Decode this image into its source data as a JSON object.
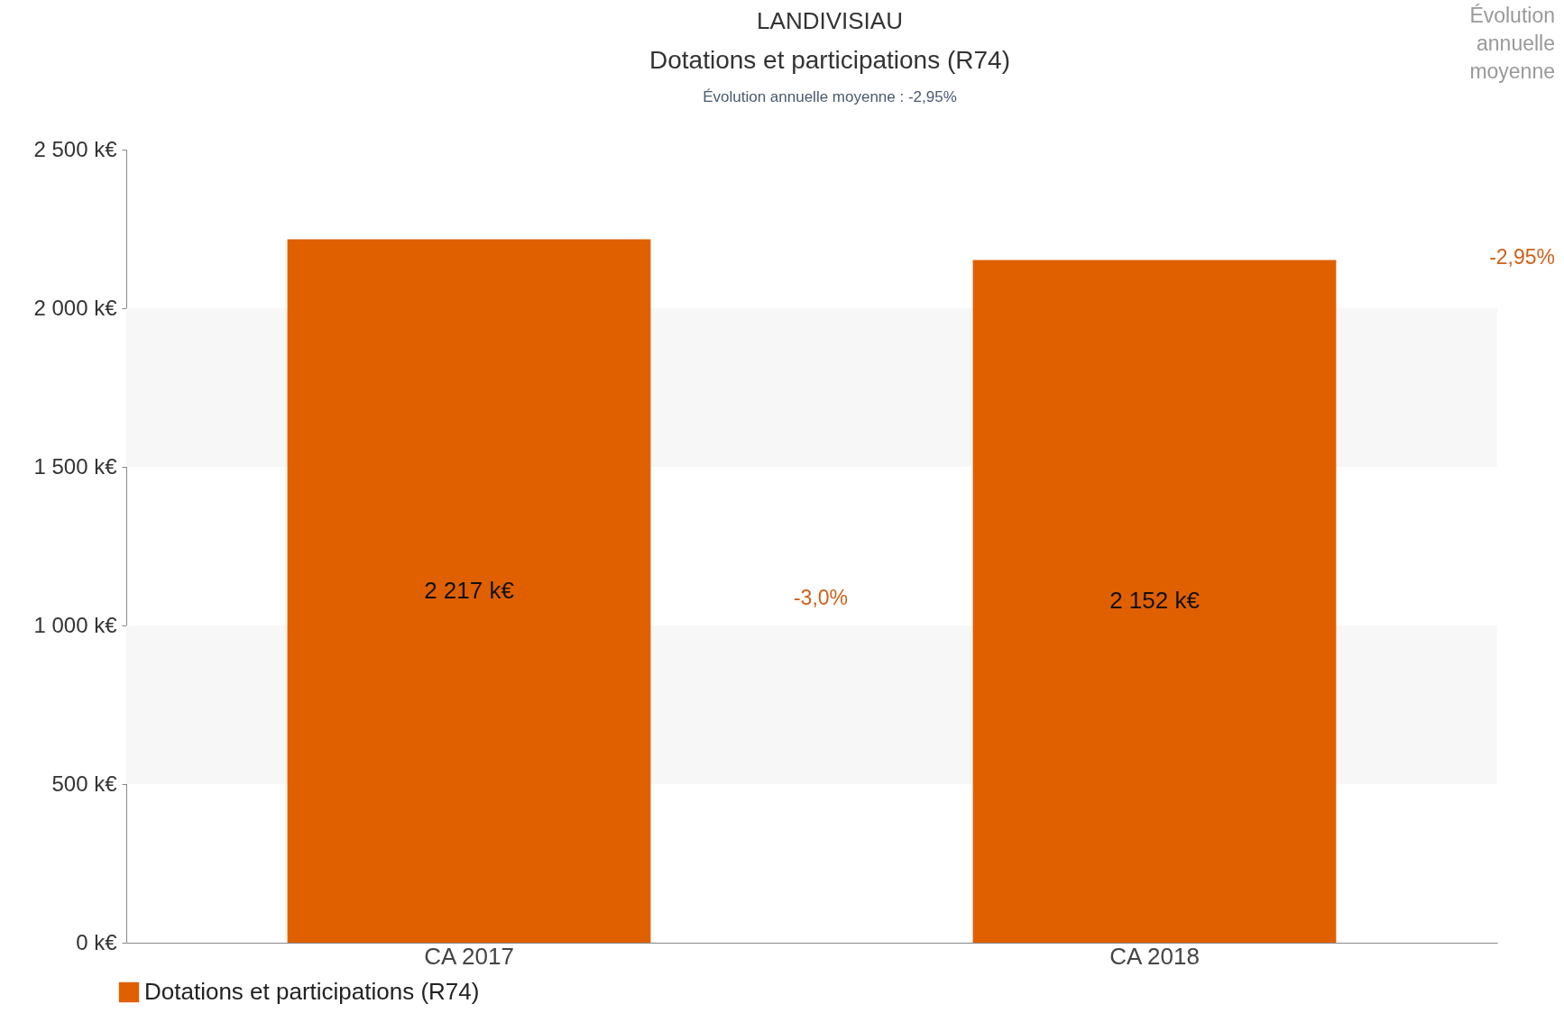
{
  "chart_data": {
    "type": "bar",
    "title": "LANDIVISIAU",
    "subtitle": "Dotations et participations (R74)",
    "annotations": [
      "Évolution annuelle moyenne : -2,95%",
      "Évolution annuelle moyenne",
      "-2,95%",
      "-3,0%"
    ],
    "categories": [
      "CA 2017",
      "CA 2018"
    ],
    "series": [
      {
        "name": "Dotations et participations (R74)",
        "color": "#e06000",
        "values": [
          2217,
          2152
        ],
        "value_labels": [
          "2 217 k€",
          "2 152 k€"
        ]
      }
    ],
    "ylim": [
      0,
      2500
    ],
    "yticks": [
      {
        "value": 0,
        "label": "0 k€"
      },
      {
        "value": 500,
        "label": "500 k€"
      },
      {
        "value": 1000,
        "label": "1 000 k€"
      },
      {
        "value": 1500,
        "label": "1 500 k€"
      },
      {
        "value": 2000,
        "label": "2 000 k€"
      },
      {
        "value": 2500,
        "label": "2 500 k€"
      }
    ],
    "bands": [
      {
        "axis": "y",
        "from": 500,
        "to": 1000,
        "color": "#f7f7f7"
      },
      {
        "axis": "y",
        "from": 1500,
        "to": 2000,
        "color": "#f7f7f7"
      }
    ],
    "legend": "bottom left",
    "grid": false
  }
}
